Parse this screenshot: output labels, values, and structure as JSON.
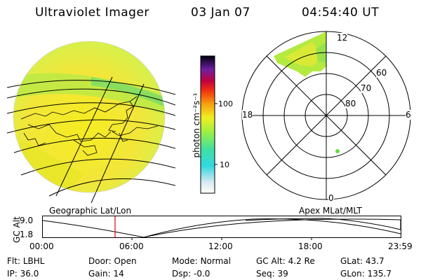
{
  "header": {
    "title": "Ultraviolet Imager",
    "date": "03 Jan 07",
    "time": "04:54:40 UT"
  },
  "colorbar": {
    "unit_label": "photon cm⁻²s⁻¹",
    "ticks": [
      "100",
      "10"
    ]
  },
  "left_panel": {
    "caption": "Geographic Lat/Lon"
  },
  "right_panel": {
    "caption": "Apex MLat/MLT",
    "mlt_labels": {
      "top": "12",
      "left": "18",
      "right": "6",
      "bottom": "0"
    },
    "lat_labels": [
      "60",
      "70",
      "80"
    ]
  },
  "altitude_plot": {
    "ylabel": "GC Alt",
    "yticks": [
      "9.0",
      "1.8"
    ],
    "xticks": [
      "00:00",
      "06:00",
      "12:00",
      "18:00",
      "23:59"
    ],
    "marker_time": "04:54:40"
  },
  "status": {
    "flt_label": "Flt:",
    "flt_value": "LBHL",
    "ip_label": "IP:",
    "ip_value": "36.0",
    "door_label": "Door:",
    "door_value": "Open",
    "gain_label": "Gain:",
    "gain_value": "14",
    "mode_label": "Mode:",
    "mode_value": "Normal",
    "dsp_label": "Dsp:",
    "dsp_value": "-0.0",
    "gcalt_label": "GC Alt:",
    "gcalt_value": "4.2 Re",
    "seq_label": "Seq:",
    "seq_value": "39",
    "glat_label": "GLat:",
    "glat_value": "43.7",
    "glon_label": "GLon:",
    "glon_value": "135.7"
  },
  "colors": {
    "marker_line": "#e00000",
    "spot": "#66dd44"
  }
}
